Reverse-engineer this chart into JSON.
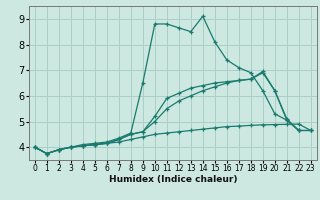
{
  "xlabel": "Humidex (Indice chaleur)",
  "bg_color": "#cce8e0",
  "line_color": "#1a7a6e",
  "grid_color": "#aacfc8",
  "xlim": [
    -0.5,
    23.5
  ],
  "ylim": [
    3.5,
    9.5
  ],
  "xticks": [
    0,
    1,
    2,
    3,
    4,
    5,
    6,
    7,
    8,
    9,
    10,
    11,
    12,
    13,
    14,
    15,
    16,
    17,
    18,
    19,
    20,
    21,
    22,
    23
  ],
  "yticks": [
    4,
    5,
    6,
    7,
    8,
    9
  ],
  "series": [
    {
      "x": [
        0,
        1,
        2,
        3,
        4,
        5,
        6,
        7,
        8,
        9,
        10,
        11,
        12,
        13,
        14,
        15,
        16,
        17,
        18,
        19,
        20,
        21,
        22,
        23
      ],
      "y": [
        4.0,
        3.75,
        3.9,
        4.0,
        4.05,
        4.1,
        4.15,
        4.2,
        4.3,
        4.4,
        4.5,
        4.55,
        4.6,
        4.65,
        4.7,
        4.75,
        4.8,
        4.82,
        4.85,
        4.87,
        4.88,
        4.89,
        4.9,
        4.65
      ]
    },
    {
      "x": [
        0,
        1,
        2,
        3,
        4,
        5,
        6,
        7,
        8,
        9,
        10,
        11,
        12,
        13,
        14,
        15,
        16,
        17,
        18,
        19,
        20,
        21,
        22,
        23
      ],
      "y": [
        4.0,
        3.75,
        3.9,
        4.0,
        4.1,
        4.15,
        4.2,
        4.35,
        4.55,
        6.5,
        8.8,
        8.8,
        8.65,
        8.5,
        9.1,
        8.1,
        7.4,
        7.1,
        6.9,
        6.2,
        5.3,
        5.05,
        4.65,
        null
      ]
    },
    {
      "x": [
        0,
        1,
        2,
        3,
        4,
        5,
        6,
        7,
        8,
        9,
        10,
        11,
        12,
        13,
        14,
        15,
        16,
        17,
        18,
        19,
        20,
        21,
        22,
        23
      ],
      "y": [
        4.0,
        3.75,
        3.9,
        4.0,
        4.05,
        4.1,
        4.15,
        4.3,
        4.5,
        4.6,
        5.0,
        5.5,
        5.8,
        6.0,
        6.2,
        6.35,
        6.5,
        6.6,
        6.65,
        6.95,
        6.2,
        5.1,
        4.65,
        4.65
      ]
    },
    {
      "x": [
        0,
        1,
        2,
        3,
        4,
        5,
        6,
        7,
        8,
        9,
        10,
        11,
        12,
        13,
        14,
        15,
        16,
        17,
        18,
        19,
        20,
        21,
        22,
        23
      ],
      "y": [
        4.0,
        3.75,
        3.9,
        4.0,
        4.05,
        4.1,
        4.15,
        4.3,
        4.5,
        4.6,
        5.2,
        5.9,
        6.1,
        6.3,
        6.4,
        6.5,
        6.55,
        6.6,
        6.65,
        6.9,
        6.2,
        5.05,
        4.65,
        4.65
      ]
    }
  ]
}
